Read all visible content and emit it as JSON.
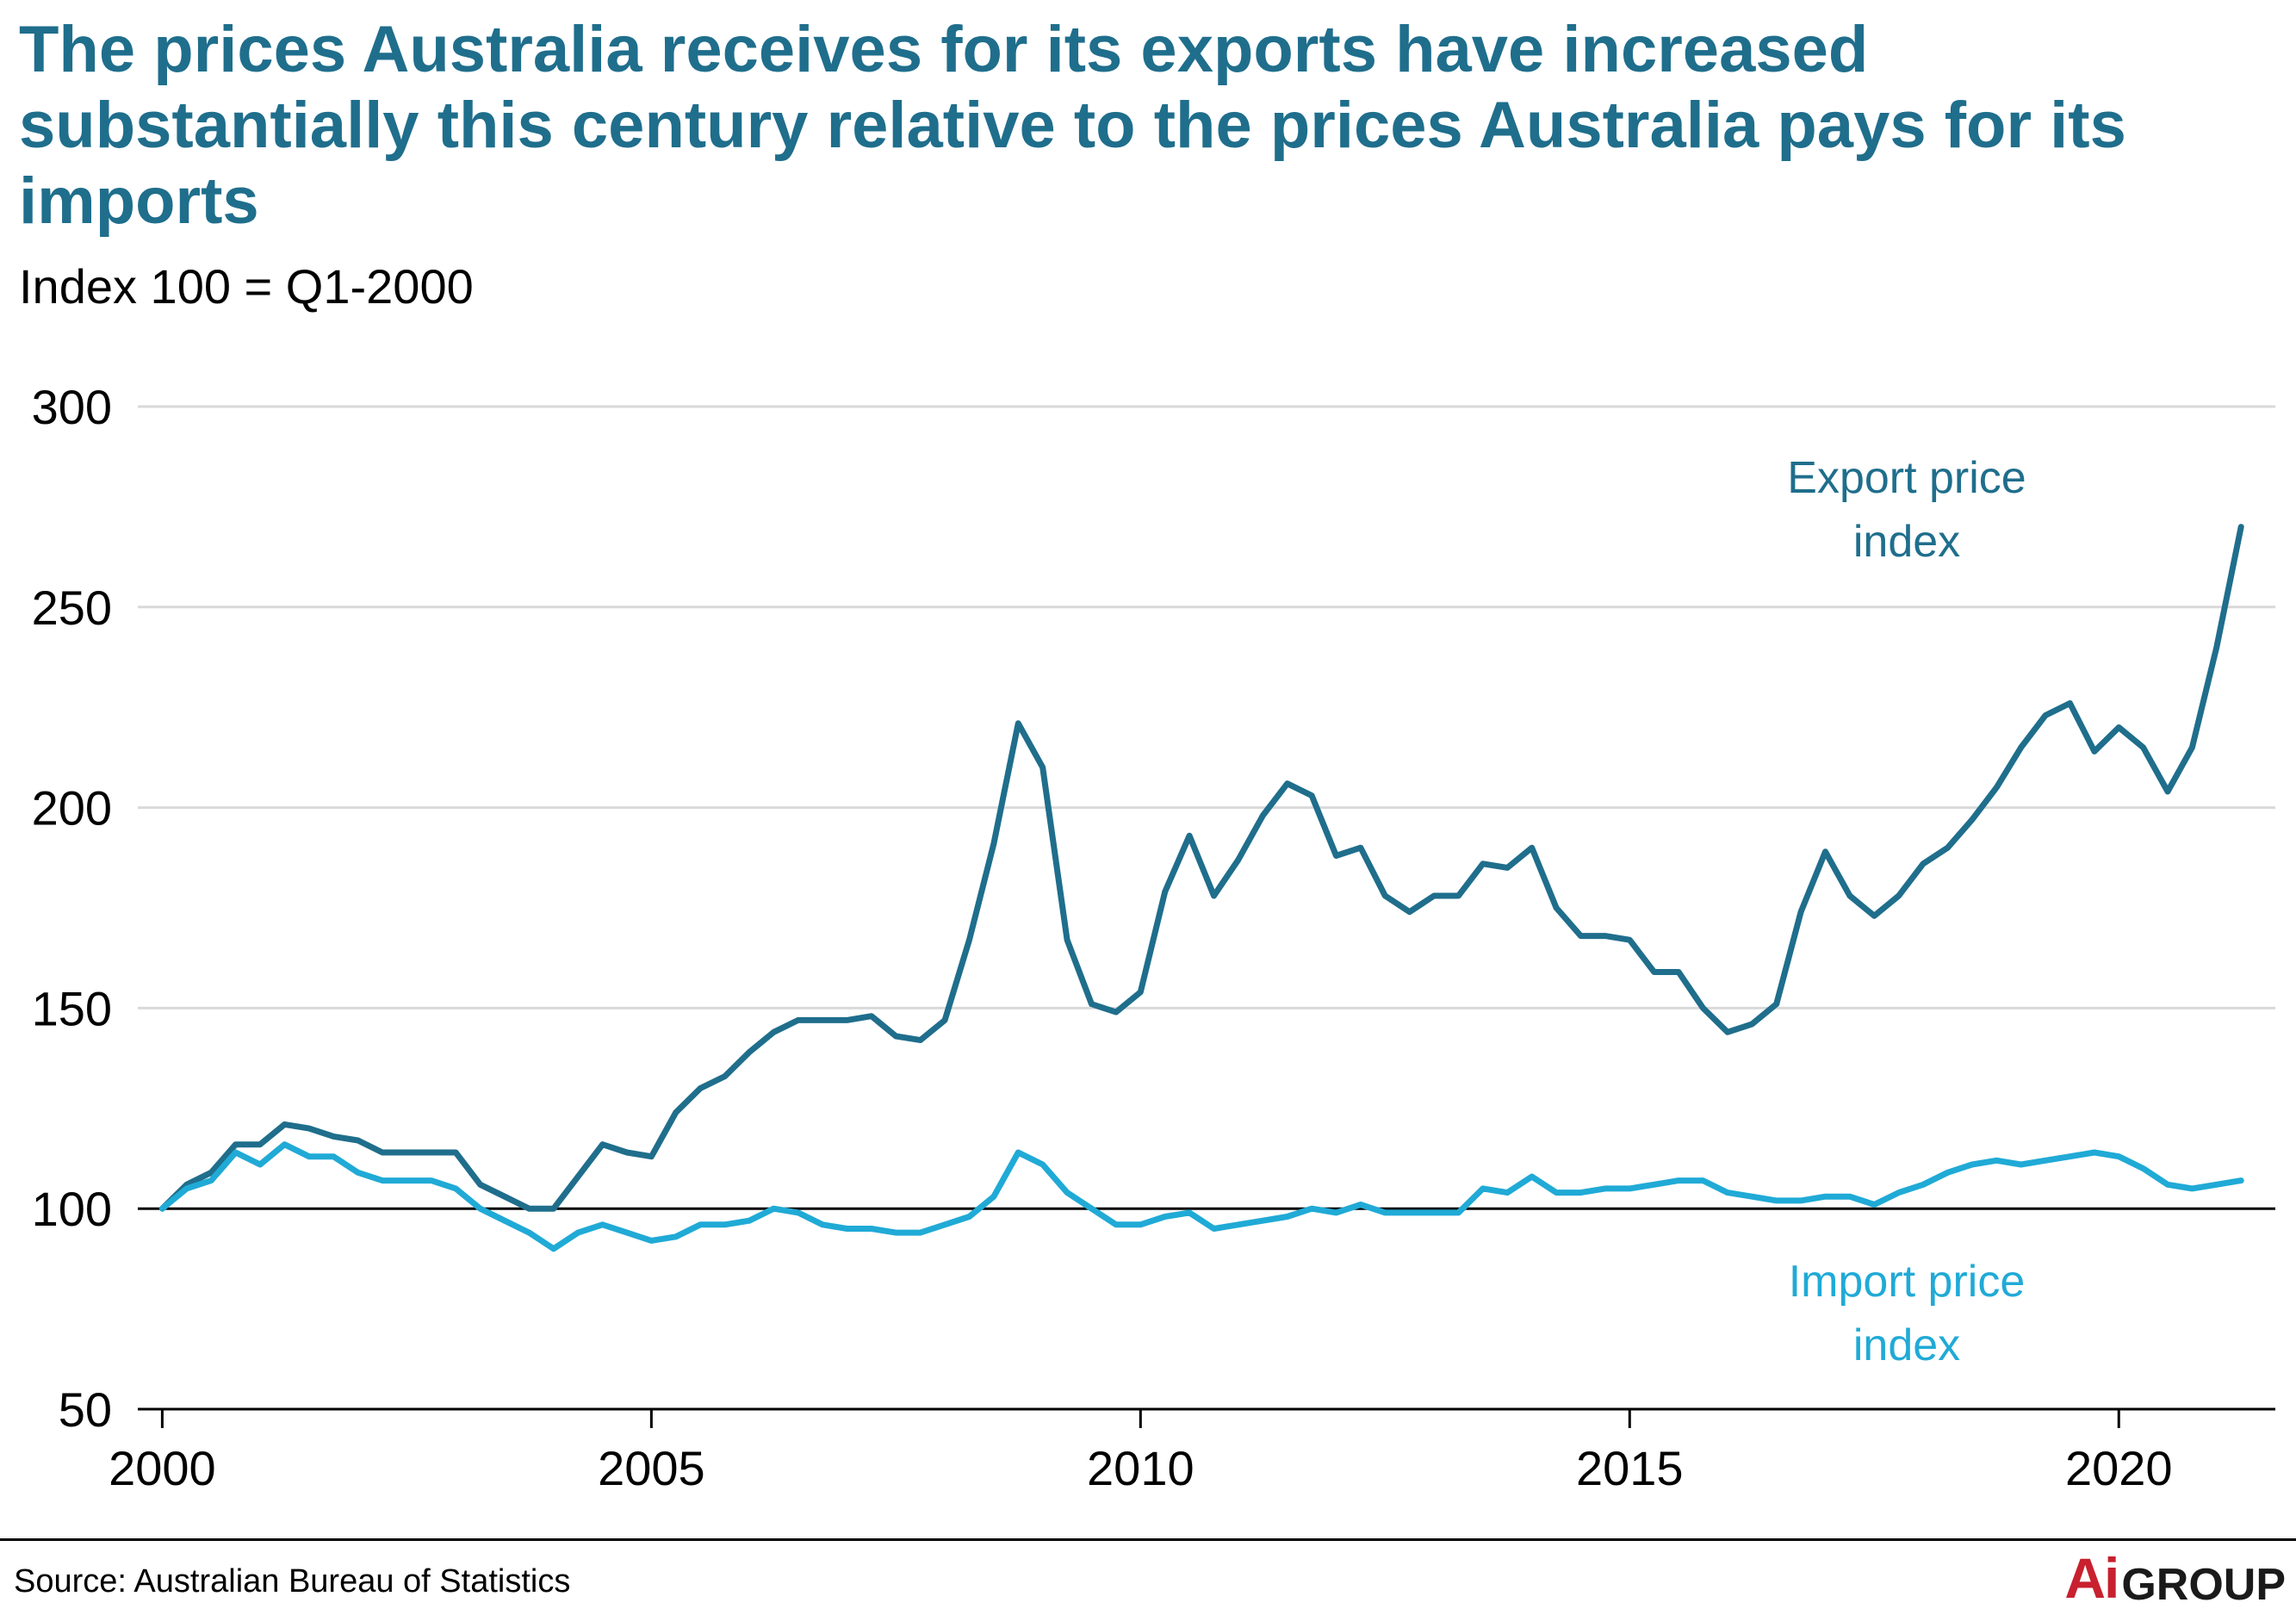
{
  "chart_data": {
    "type": "line",
    "title": "The prices Australia receives for its exports have increased substantially this century relative to the prices Australia pays for its imports",
    "subtitle": "Index 100 = Q1-2000",
    "source": "Source: Australian Bureau of Statistics",
    "ylim": [
      50,
      300
    ],
    "yticks": [
      "50",
      "100",
      "150",
      "200",
      "250",
      "300"
    ],
    "xlim": [
      1999.75,
      2021.6
    ],
    "xticks": [
      "2000",
      "2005",
      "2010",
      "2015",
      "2020"
    ],
    "reference_line": 100,
    "grid": "horizontal",
    "series": [
      {
        "name": "Export price index",
        "label_lines": [
          "Export price",
          "index"
        ],
        "color": "#1f6e8c",
        "x": [
          2000.0,
          2000.25,
          2000.5,
          2000.75,
          2001.0,
          2001.25,
          2001.5,
          2001.75,
          2002.0,
          2002.25,
          2002.5,
          2002.75,
          2003.0,
          2003.25,
          2003.5,
          2003.75,
          2004.0,
          2004.25,
          2004.5,
          2004.75,
          2005.0,
          2005.25,
          2005.5,
          2005.75,
          2006.0,
          2006.25,
          2006.5,
          2006.75,
          2007.0,
          2007.25,
          2007.5,
          2007.75,
          2008.0,
          2008.25,
          2008.5,
          2008.75,
          2009.0,
          2009.25,
          2009.5,
          2009.75,
          2010.0,
          2010.25,
          2010.5,
          2010.75,
          2011.0,
          2011.25,
          2011.5,
          2011.75,
          2012.0,
          2012.25,
          2012.5,
          2012.75,
          2013.0,
          2013.25,
          2013.5,
          2013.75,
          2014.0,
          2014.25,
          2014.5,
          2014.75,
          2015.0,
          2015.25,
          2015.5,
          2015.75,
          2016.0,
          2016.25,
          2016.5,
          2016.75,
          2017.0,
          2017.25,
          2017.5,
          2017.75,
          2018.0,
          2018.25,
          2018.5,
          2018.75,
          2019.0,
          2019.25,
          2019.5,
          2019.75,
          2020.0,
          2020.25,
          2020.5,
          2020.75,
          2021.0,
          2021.25
        ],
        "values": [
          100,
          106,
          109,
          116,
          116,
          121,
          120,
          118,
          117,
          114,
          114,
          114,
          114,
          106,
          103,
          100,
          100,
          108,
          116,
          114,
          113,
          124,
          130,
          133,
          139,
          144,
          147,
          147,
          147,
          148,
          143,
          142,
          147,
          167,
          191,
          221,
          210,
          167,
          151,
          149,
          154,
          179,
          193,
          178,
          187,
          198,
          206,
          203,
          188,
          190,
          178,
          174,
          178,
          178,
          186,
          185,
          190,
          175,
          168,
          168,
          167,
          159,
          159,
          150,
          144,
          146,
          151,
          174,
          189,
          178,
          173,
          178,
          186,
          190,
          197,
          205,
          215,
          223,
          226,
          214,
          220,
          215,
          204,
          215,
          240,
          270
        ]
      },
      {
        "name": "Import price index",
        "label_lines": [
          "Import price",
          "index"
        ],
        "color": "#20aad6",
        "x": [
          2000.0,
          2000.25,
          2000.5,
          2000.75,
          2001.0,
          2001.25,
          2001.5,
          2001.75,
          2002.0,
          2002.25,
          2002.5,
          2002.75,
          2003.0,
          2003.25,
          2003.5,
          2003.75,
          2004.0,
          2004.25,
          2004.5,
          2004.75,
          2005.0,
          2005.25,
          2005.5,
          2005.75,
          2006.0,
          2006.25,
          2006.5,
          2006.75,
          2007.0,
          2007.25,
          2007.5,
          2007.75,
          2008.0,
          2008.25,
          2008.5,
          2008.75,
          2009.0,
          2009.25,
          2009.5,
          2009.75,
          2010.0,
          2010.25,
          2010.5,
          2010.75,
          2011.0,
          2011.25,
          2011.5,
          2011.75,
          2012.0,
          2012.25,
          2012.5,
          2012.75,
          2013.0,
          2013.25,
          2013.5,
          2013.75,
          2014.0,
          2014.25,
          2014.5,
          2014.75,
          2015.0,
          2015.25,
          2015.5,
          2015.75,
          2016.0,
          2016.25,
          2016.5,
          2016.75,
          2017.0,
          2017.25,
          2017.5,
          2017.75,
          2018.0,
          2018.25,
          2018.5,
          2018.75,
          2019.0,
          2019.25,
          2019.5,
          2019.75,
          2020.0,
          2020.25,
          2020.5,
          2020.75,
          2021.0,
          2021.25
        ],
        "values": [
          100,
          105,
          107,
          114,
          111,
          116,
          113,
          113,
          109,
          107,
          107,
          107,
          105,
          100,
          97,
          94,
          90,
          94,
          96,
          94,
          92,
          93,
          96,
          96,
          97,
          100,
          99,
          96,
          95,
          95,
          94,
          94,
          96,
          98,
          103,
          114,
          111,
          104,
          100,
          96,
          96,
          98,
          99,
          95,
          96,
          97,
          98,
          100,
          99,
          101,
          99,
          99,
          99,
          99,
          105,
          104,
          108,
          104,
          104,
          105,
          105,
          106,
          107,
          107,
          104,
          103,
          102,
          102,
          103,
          103,
          101,
          104,
          106,
          109,
          111,
          112,
          111,
          112,
          113,
          114,
          113,
          110,
          106,
          105,
          106,
          107
        ]
      }
    ]
  }
}
